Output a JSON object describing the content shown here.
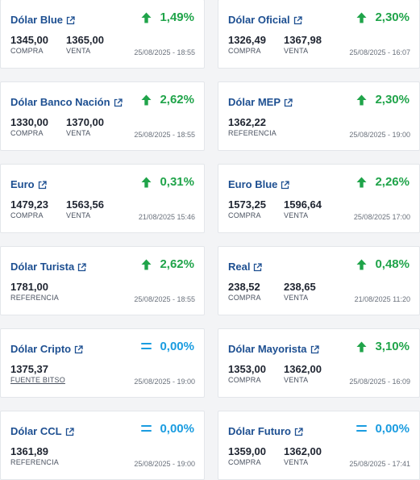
{
  "cards": [
    {
      "name": "dolar-blue",
      "title": "Dólar Blue",
      "trend": "up",
      "change": "1,49%",
      "values": [
        {
          "value": "1345,00",
          "label": "COMPRA"
        },
        {
          "value": "1365,00",
          "label": "VENTA"
        }
      ],
      "date": "25/08/2025 - 18:55"
    },
    {
      "name": "dolar-oficial",
      "title": "Dólar Oficial",
      "trend": "up",
      "change": "2,30%",
      "values": [
        {
          "value": "1326,49",
          "label": "COMPRA"
        },
        {
          "value": "1367,98",
          "label": "VENTA"
        }
      ],
      "date": "25/08/2025 - 16:07"
    },
    {
      "name": "dolar-banco-nacion",
      "title": "Dólar Banco Nación",
      "trend": "up",
      "change": "2,62%",
      "values": [
        {
          "value": "1330,00",
          "label": "COMPRA"
        },
        {
          "value": "1370,00",
          "label": "VENTA"
        }
      ],
      "date": "25/08/2025 - 18:55"
    },
    {
      "name": "dolar-mep",
      "title": "Dólar MEP",
      "trend": "up",
      "change": "2,30%",
      "values": [
        {
          "value": "1362,22",
          "label": "REFERENCIA"
        }
      ],
      "date": "25/08/2025 - 19:00"
    },
    {
      "name": "euro",
      "title": "Euro",
      "trend": "up",
      "change": "0,31%",
      "values": [
        {
          "value": "1479,23",
          "label": "COMPRA"
        },
        {
          "value": "1563,56",
          "label": "VENTA"
        }
      ],
      "date": "21/08/2025 15:46"
    },
    {
      "name": "euro-blue",
      "title": "Euro Blue",
      "trend": "up",
      "change": "2,26%",
      "values": [
        {
          "value": "1573,25",
          "label": "COMPRA"
        },
        {
          "value": "1596,64",
          "label": "VENTA"
        }
      ],
      "date": "25/08/2025 17:00"
    },
    {
      "name": "dolar-turista",
      "title": "Dólar Turista",
      "trend": "up",
      "change": "2,62%",
      "values": [
        {
          "value": "1781,00",
          "label": "REFERENCIA"
        }
      ],
      "date": "25/08/2025 - 18:55"
    },
    {
      "name": "real",
      "title": "Real",
      "trend": "up",
      "change": "0,48%",
      "values": [
        {
          "value": "238,52",
          "label": "COMPRA"
        },
        {
          "value": "238,65",
          "label": "VENTA"
        }
      ],
      "date": "21/08/2025 11:20"
    },
    {
      "name": "dolar-cripto",
      "title": "Dólar Cripto",
      "trend": "eq",
      "change": "0,00%",
      "values": [
        {
          "value": "1375,37",
          "label": "FUENTE BITSO",
          "link": true
        }
      ],
      "date": "25/08/2025 - 19:00"
    },
    {
      "name": "dolar-mayorista",
      "title": "Dólar Mayorista",
      "trend": "up",
      "change": "3,10%",
      "values": [
        {
          "value": "1353,00",
          "label": "COMPRA"
        },
        {
          "value": "1362,00",
          "label": "VENTA"
        }
      ],
      "date": "25/08/2025 - 16:09"
    },
    {
      "name": "dolar-ccl",
      "title": "Dólar CCL",
      "trend": "eq",
      "change": "0,00%",
      "values": [
        {
          "value": "1361,89",
          "label": "REFERENCIA"
        }
      ],
      "date": "25/08/2025 - 19:00"
    },
    {
      "name": "dolar-futuro",
      "title": "Dólar Futuro",
      "trend": "eq",
      "change": "0,00%",
      "values": [
        {
          "value": "1359,00",
          "label": "COMPRA"
        },
        {
          "value": "1362,00",
          "label": "VENTA"
        }
      ],
      "date": "25/08/2025 - 17:41"
    }
  ],
  "colors": {
    "up": "#20a44a",
    "equal": "#1a9ce0",
    "title": "#1d4f91"
  },
  "icons": {
    "external": "external-link-icon",
    "up": "arrow-up-icon",
    "equal": "equals-icon"
  }
}
